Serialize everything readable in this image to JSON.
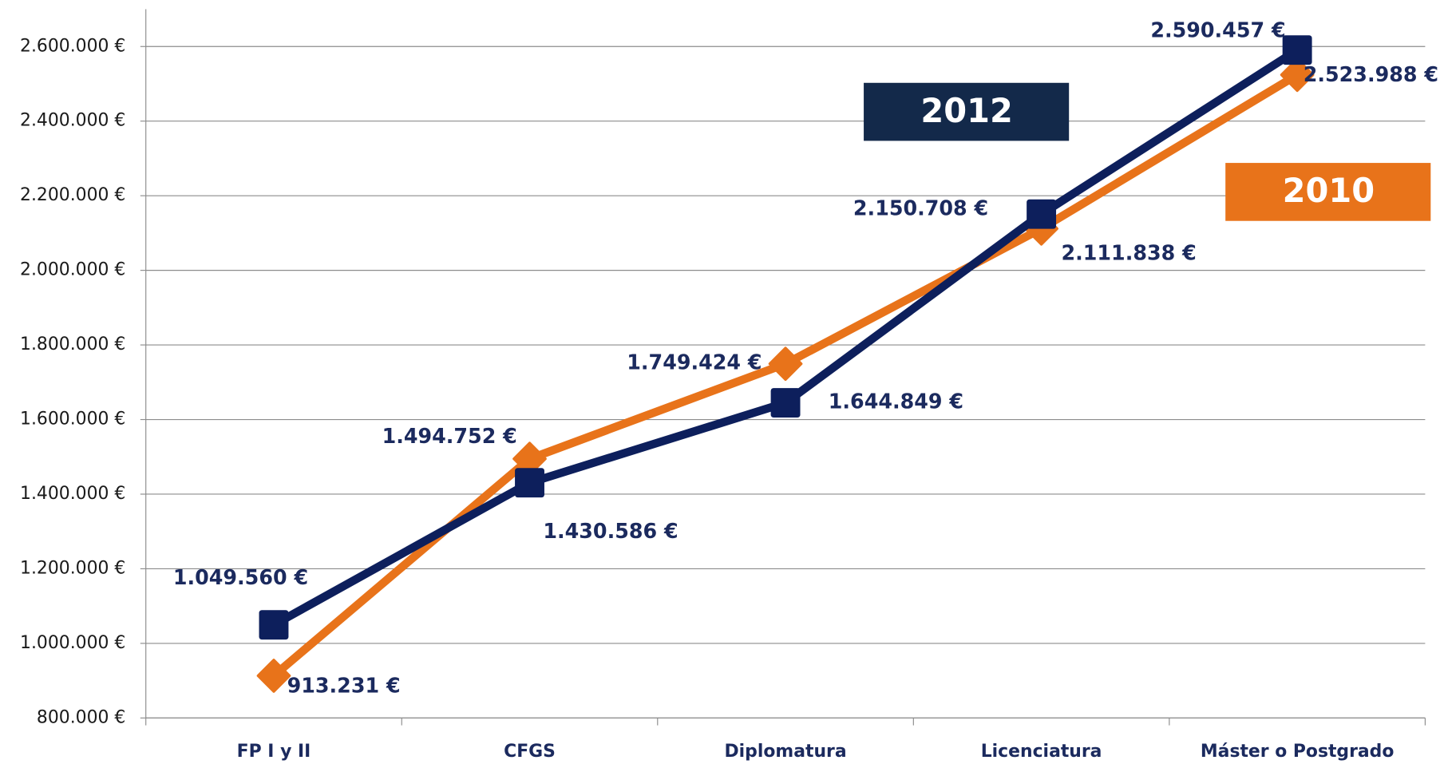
{
  "chart_data": {
    "type": "line",
    "categories": [
      "FP I y II",
      "CFGS",
      "Diplomatura",
      "Licenciatura",
      "Máster o Postgrado"
    ],
    "series": [
      {
        "name": "2012",
        "color": "#0d1f5c",
        "marker": "square",
        "values": [
          1049560,
          1430586,
          1644849,
          2150708,
          2590457
        ],
        "value_labels": [
          "1.049.560 €",
          "1.430.586 €",
          "1.644.849 €",
          "2.150.708 €",
          "2.590.457 €"
        ]
      },
      {
        "name": "2010",
        "color": "#e8731a",
        "marker": "diamond",
        "values": [
          913231,
          1494752,
          1749424,
          2111838,
          2523988
        ],
        "value_labels": [
          "913.231 €",
          "1.494.752 €",
          "1.749.424 €",
          "2.111.838 €",
          "2.523.988 €"
        ]
      }
    ],
    "ylim": [
      800000,
      2700000
    ],
    "yticks": [
      {
        "value": 800000,
        "label": "800.000 €"
      },
      {
        "value": 1000000,
        "label": "1.000.000 €"
      },
      {
        "value": 1200000,
        "label": "1.200.000 €"
      },
      {
        "value": 1400000,
        "label": "1.400.000 €"
      },
      {
        "value": 1600000,
        "label": "1.600.000 €"
      },
      {
        "value": 1800000,
        "label": "1.800.000 €"
      },
      {
        "value": 2000000,
        "label": "2.000.000 €"
      },
      {
        "value": 2200000,
        "label": "2.200.000 €"
      },
      {
        "value": 2400000,
        "label": "2.400.000 €"
      },
      {
        "value": 2600000,
        "label": "2.600.000 €"
      }
    ],
    "grid": true
  }
}
